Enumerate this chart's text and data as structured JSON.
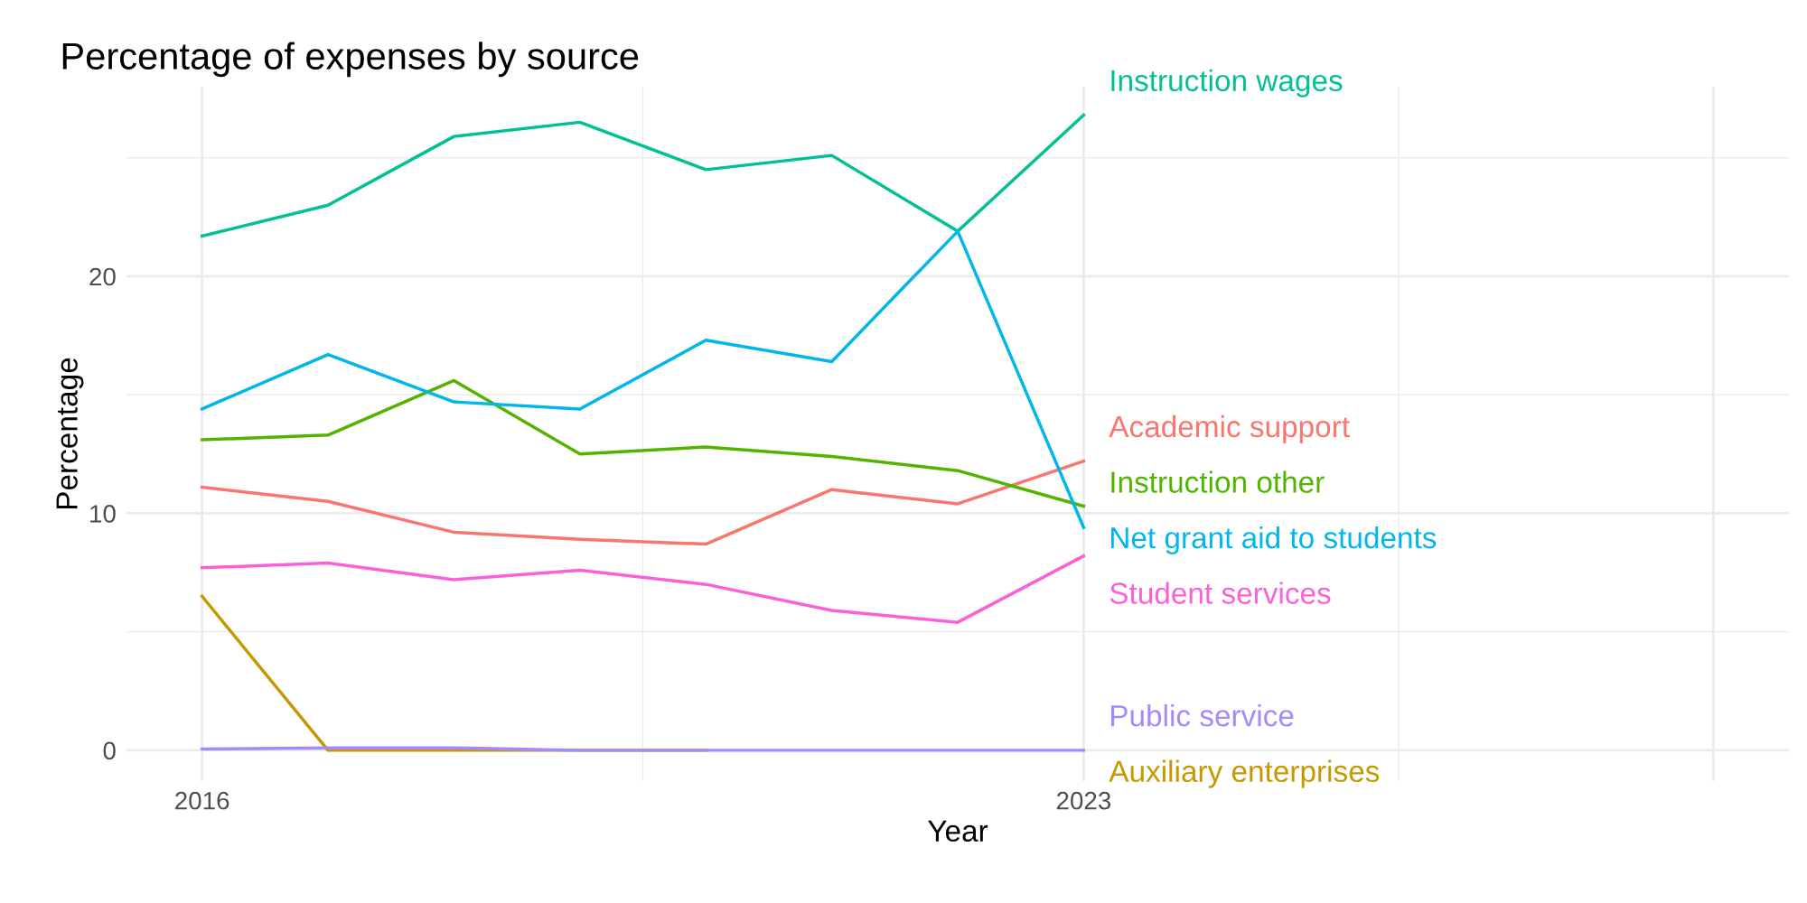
{
  "chart_data": {
    "type": "line",
    "title": "Percentage of expenses by source",
    "xlabel": "Year",
    "ylabel": "Percentage",
    "x": [
      2016,
      2017,
      2018,
      2019,
      2020,
      2021,
      2022,
      2023
    ],
    "series": [
      {
        "name": "Instruction wages",
        "color": "#00c094",
        "values": [
          21.7,
          23.0,
          25.9,
          26.5,
          24.5,
          25.1,
          21.9,
          26.8
        ]
      },
      {
        "name": "Academic support",
        "color": "#f8766d",
        "values": [
          11.1,
          10.5,
          9.2,
          8.9,
          8.7,
          11.0,
          10.4,
          12.2
        ]
      },
      {
        "name": "Instruction other",
        "color": "#53b400",
        "values": [
          13.1,
          13.3,
          15.6,
          12.5,
          12.8,
          12.4,
          11.8,
          10.3
        ]
      },
      {
        "name": "Net grant aid to students",
        "color": "#00b6eb",
        "values": [
          14.4,
          16.7,
          14.7,
          14.4,
          17.3,
          16.4,
          21.9,
          9.4
        ]
      },
      {
        "name": "Student services",
        "color": "#fb61d7",
        "values": [
          7.7,
          7.9,
          7.2,
          7.6,
          7.0,
          5.9,
          5.4,
          8.2
        ]
      },
      {
        "name": "Auxiliary enterprises",
        "color": "#c49a00",
        "values": [
          6.5,
          0,
          0,
          0,
          0,
          null,
          null,
          null
        ]
      },
      {
        "name": "Public service",
        "color": "#a58aff",
        "values": [
          0.05,
          0.1,
          0.1,
          0,
          0,
          0,
          0,
          0
        ]
      }
    ],
    "xlim": [
      2015.4,
      2028.6
    ],
    "ylim": [
      -1.3,
      28
    ],
    "xticks": [
      2016,
      2023,
      {
        "value": 2028,
        "label": null
      }
    ],
    "yticks": [
      0,
      10,
      20
    ],
    "grid": true,
    "legend": false,
    "marker": "none",
    "line_style": "solid"
  }
}
